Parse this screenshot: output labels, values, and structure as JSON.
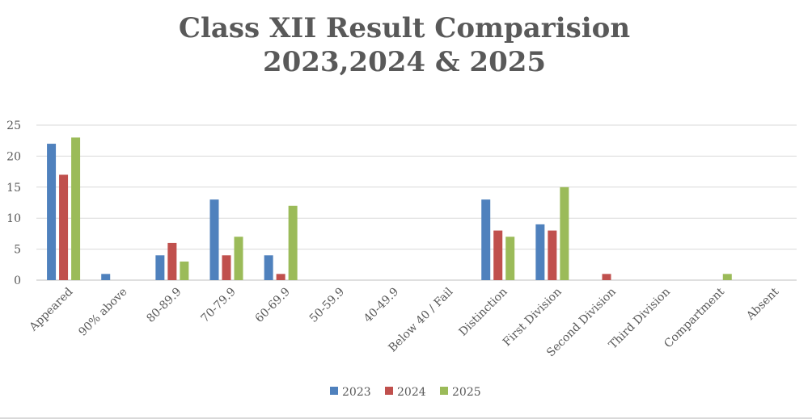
{
  "chart_data": {
    "type": "bar",
    "title_lines": [
      "Class XII Result Comparision",
      "2023,2024 & 2025"
    ],
    "categories": [
      "Appeared",
      "90% above",
      "80-89.9",
      "70-79.9",
      "60-69.9",
      "50-59.9",
      "40-49.9",
      "Below 40 / Fail",
      "Distinction",
      "First Division",
      "Second Division",
      "Third Division",
      "Compartment",
      "Absent"
    ],
    "series": [
      {
        "name": "2023",
        "color": "#4f81bd",
        "values": [
          22,
          1,
          4,
          13,
          4,
          0,
          0,
          0,
          13,
          9,
          0,
          0,
          0,
          0
        ]
      },
      {
        "name": "2024",
        "color": "#c0504d",
        "values": [
          17,
          0,
          6,
          4,
          1,
          0,
          0,
          0,
          8,
          8,
          1,
          0,
          0,
          0
        ]
      },
      {
        "name": "2025",
        "color": "#9bbb59",
        "values": [
          23,
          0,
          3,
          7,
          12,
          0,
          0,
          0,
          7,
          15,
          0,
          0,
          1,
          0
        ]
      }
    ],
    "ylim": [
      0,
      25
    ],
    "yticks": [
      "0",
      "5",
      "10",
      "15",
      "20",
      "25"
    ],
    "grid": true,
    "legend_position": "bottom"
  }
}
